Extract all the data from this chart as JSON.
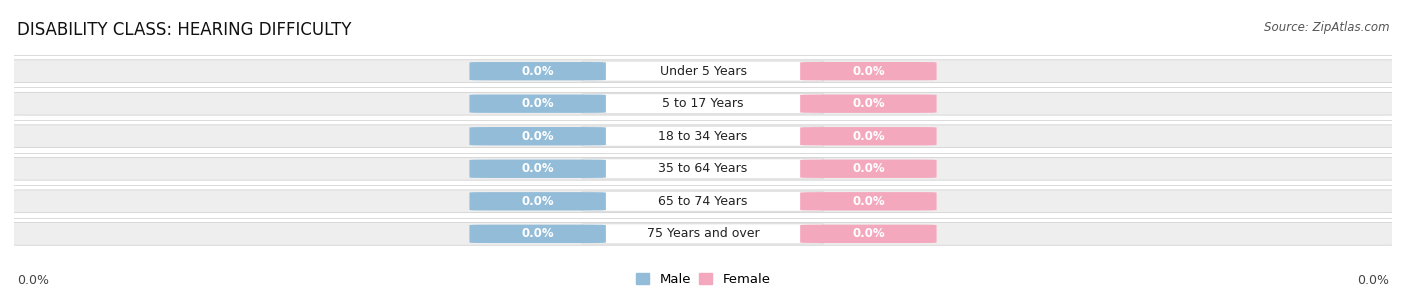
{
  "title": "DISABILITY CLASS: HEARING DIFFICULTY",
  "source": "Source: ZipAtlas.com",
  "categories": [
    "Under 5 Years",
    "5 to 17 Years",
    "18 to 34 Years",
    "35 to 64 Years",
    "65 to 74 Years",
    "75 Years and over"
  ],
  "male_values": [
    0.0,
    0.0,
    0.0,
    0.0,
    0.0,
    0.0
  ],
  "female_values": [
    0.0,
    0.0,
    0.0,
    0.0,
    0.0,
    0.0
  ],
  "male_color": "#92bcd8",
  "female_color": "#f4a8be",
  "row_bg_color": "#eeeeee",
  "row_bg_color2": "#e0e0e0",
  "label_bg_color": "#ffffff",
  "title_fontsize": 12,
  "label_fontsize": 9,
  "chip_fontsize": 8.5,
  "x_tick_label_left": "0.0%",
  "x_tick_label_right": "0.0%",
  "legend_male": "Male",
  "legend_female": "Female",
  "figsize": [
    14.06,
    3.05
  ],
  "dpi": 100
}
